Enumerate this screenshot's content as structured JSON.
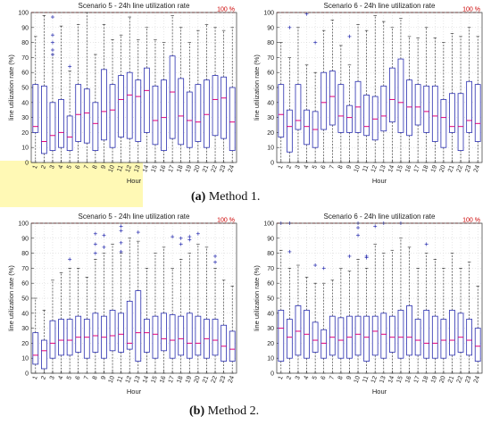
{
  "captions": {
    "a": {
      "label": "(a)",
      "text": " Method 1."
    },
    "b": {
      "label": "(b)",
      "text": " Method 2."
    }
  },
  "colors": {
    "box": "#2a2fb0",
    "median": "#e0007a",
    "whisker": "#222222",
    "outlier": "#2a2fb0",
    "reference": "#cc0000",
    "grid": "#cfcfcf",
    "highlight": "#fff8a8"
  },
  "chart_data": [
    {
      "type": "boxplot",
      "title": "Scenario 5 - 24h line utilization rate",
      "xlabel": "Hour",
      "ylabel": "line utilization rate  (%)",
      "ref_label": "100 %",
      "ylim": [
        0,
        100
      ],
      "yticks": [
        "0",
        "10",
        "20",
        "30",
        "40",
        "50",
        "60",
        "70",
        "80",
        "90",
        "100"
      ],
      "categories": [
        "1",
        "2",
        "3",
        "4",
        "5",
        "6",
        "7",
        "8",
        "9",
        "10",
        "11",
        "12",
        "13",
        "14",
        "15",
        "16",
        "17",
        "18",
        "19",
        "20",
        "21",
        "22",
        "23",
        "24"
      ],
      "grid": true,
      "boxes": [
        {
          "q1": 20,
          "med": 24,
          "q3": 52,
          "max": 84
        },
        {
          "q1": 6,
          "med": 14,
          "q3": 51,
          "max": 98
        },
        {
          "q1": 8,
          "med": 18,
          "q3": 40,
          "max": 72,
          "outliers": [
            97,
            85,
            80,
            75,
            72
          ]
        },
        {
          "q1": 10,
          "med": 20,
          "q3": 42,
          "max": 91
        },
        {
          "q1": 8,
          "med": 17,
          "q3": 31,
          "max": 61,
          "outliers": [
            64
          ]
        },
        {
          "q1": 14,
          "med": 32,
          "q3": 52,
          "max": 92
        },
        {
          "q1": 13,
          "med": 33,
          "q3": 49,
          "max": 100
        },
        {
          "q1": 8,
          "med": 26,
          "q3": 40,
          "max": 72
        },
        {
          "q1": 15,
          "med": 34,
          "q3": 62,
          "max": 92
        },
        {
          "q1": 10,
          "med": 35,
          "q3": 52,
          "max": 82
        },
        {
          "q1": 17,
          "med": 42,
          "q3": 58,
          "max": 85
        },
        {
          "q1": 16,
          "med": 45,
          "q3": 60,
          "max": 97
        },
        {
          "q1": 14,
          "med": 44,
          "q3": 55,
          "max": 82
        },
        {
          "q1": 20,
          "med": 48,
          "q3": 63,
          "max": 90
        },
        {
          "q1": 12,
          "med": 28,
          "q3": 51,
          "max": 82
        },
        {
          "q1": 8,
          "med": 30,
          "q3": 55,
          "max": 80
        },
        {
          "q1": 16,
          "med": 47,
          "q3": 71,
          "max": 98
        },
        {
          "q1": 12,
          "med": 31,
          "q3": 56,
          "max": 90
        },
        {
          "q1": 10,
          "med": 28,
          "q3": 47,
          "max": 80
        },
        {
          "q1": 14,
          "med": 27,
          "q3": 52,
          "max": 88
        },
        {
          "q1": 10,
          "med": 32,
          "q3": 55,
          "max": 92
        },
        {
          "q1": 18,
          "med": 42,
          "q3": 58,
          "max": 90
        },
        {
          "q1": 16,
          "med": 43,
          "q3": 57,
          "max": 88
        },
        {
          "q1": 8,
          "med": 27,
          "q3": 50,
          "max": 90
        }
      ]
    },
    {
      "type": "boxplot",
      "title": "Scenario 6 - 24h line utilization rate",
      "xlabel": "Hour",
      "ylabel": "line utilization rate  (%)",
      "ref_label": "100 %",
      "ylim": [
        0,
        100
      ],
      "yticks": [
        "0",
        "10",
        "20",
        "30",
        "40",
        "50",
        "60",
        "70",
        "80",
        "90",
        "100"
      ],
      "categories": [
        "1",
        "2",
        "3",
        "4",
        "5",
        "6",
        "7",
        "8",
        "9",
        "10",
        "11",
        "12",
        "13",
        "14",
        "15",
        "16",
        "17",
        "18",
        "19",
        "20",
        "21",
        "22",
        "23",
        "24"
      ],
      "grid": true,
      "boxes": [
        {
          "q1": 17,
          "med": 32,
          "q3": 52,
          "max": 80
        },
        {
          "q1": 7,
          "med": 24,
          "q3": 35,
          "max": 70,
          "outliers": [
            90
          ]
        },
        {
          "q1": 22,
          "med": 28,
          "q3": 52,
          "max": 90
        },
        {
          "q1": 12,
          "med": 24,
          "q3": 35,
          "max": 65,
          "outliers": [
            99
          ]
        },
        {
          "q1": 10,
          "med": 22,
          "q3": 34,
          "max": 60,
          "outliers": [
            80
          ]
        },
        {
          "q1": 22,
          "med": 40,
          "q3": 60,
          "max": 88
        },
        {
          "q1": 25,
          "med": 44,
          "q3": 61,
          "max": 95
        },
        {
          "q1": 20,
          "med": 31,
          "q3": 52,
          "max": 78
        },
        {
          "q1": 20,
          "med": 30,
          "q3": 38,
          "max": 65,
          "outliers": [
            84
          ]
        },
        {
          "q1": 20,
          "med": 37,
          "q3": 54,
          "max": 92
        },
        {
          "q1": 18,
          "med": 24,
          "q3": 45,
          "max": 88
        },
        {
          "q1": 15,
          "med": 29,
          "q3": 44,
          "max": 98
        },
        {
          "q1": 21,
          "med": 31,
          "q3": 51,
          "max": 94
        },
        {
          "q1": 27,
          "med": 42,
          "q3": 63,
          "max": 90
        },
        {
          "q1": 20,
          "med": 40,
          "q3": 69,
          "max": 96
        },
        {
          "q1": 18,
          "med": 37,
          "q3": 55,
          "max": 84
        },
        {
          "q1": 25,
          "med": 37,
          "q3": 52,
          "max": 83
        },
        {
          "q1": 20,
          "med": 34,
          "q3": 51,
          "max": 90
        },
        {
          "q1": 14,
          "med": 31,
          "q3": 51,
          "max": 83
        },
        {
          "q1": 10,
          "med": 30,
          "q3": 42,
          "max": 80
        },
        {
          "q1": 20,
          "med": 24,
          "q3": 46,
          "max": 86
        },
        {
          "q1": 8,
          "med": 24,
          "q3": 46,
          "max": 84
        },
        {
          "q1": 20,
          "med": 28,
          "q3": 54,
          "max": 90
        },
        {
          "q1": 14,
          "med": 26,
          "q3": 52,
          "max": 84
        }
      ]
    },
    {
      "type": "boxplot",
      "title": "Scenario 5 - 24h line utilization rate",
      "xlabel": "Hour",
      "ylabel": "line utilization rate  (%)",
      "ref_label": "100 %",
      "ylim": [
        0,
        100
      ],
      "yticks": [
        "0",
        "10",
        "20",
        "30",
        "40",
        "50",
        "60",
        "70",
        "80",
        "90",
        "100"
      ],
      "categories": [
        "1",
        "2",
        "3",
        "4",
        "5",
        "6",
        "7",
        "8",
        "9",
        "10",
        "11",
        "12",
        "13",
        "14",
        "15",
        "16",
        "17",
        "18",
        "19",
        "20",
        "21",
        "22",
        "23",
        "24"
      ],
      "grid": true,
      "boxes": [
        {
          "q1": 6,
          "med": 12,
          "q3": 27,
          "max": 50
        },
        {
          "q1": 3,
          "med": 15,
          "q3": 22,
          "max": 42
        },
        {
          "q1": 10,
          "med": 20,
          "q3": 35,
          "max": 62
        },
        {
          "q1": 12,
          "med": 22,
          "q3": 36,
          "max": 67
        },
        {
          "q1": 12,
          "med": 22,
          "q3": 36,
          "max": 70,
          "outliers": [
            76
          ]
        },
        {
          "q1": 14,
          "med": 24,
          "q3": 38,
          "max": 70
        },
        {
          "q1": 10,
          "med": 24,
          "q3": 36,
          "max": 64
        },
        {
          "q1": 14,
          "med": 25,
          "q3": 40,
          "max": 76,
          "outliers": [
            93,
            86,
            80
          ]
        },
        {
          "q1": 10,
          "med": 24,
          "q3": 38,
          "max": 80,
          "outliers": [
            92,
            84
          ]
        },
        {
          "q1": 15,
          "med": 25,
          "q3": 42,
          "max": 86
        },
        {
          "q1": 14,
          "med": 26,
          "q3": 40,
          "max": 80,
          "outliers": [
            98,
            95,
            87,
            81
          ]
        },
        {
          "q1": 16,
          "med": 20,
          "q3": 48,
          "max": 90
        },
        {
          "q1": 8,
          "med": 27,
          "q3": 55,
          "max": 88,
          "outliers": [
            94
          ]
        },
        {
          "q1": 14,
          "med": 27,
          "q3": 36,
          "max": 70
        },
        {
          "q1": 10,
          "med": 26,
          "q3": 38,
          "max": 80
        },
        {
          "q1": 15,
          "med": 23,
          "q3": 40,
          "max": 84
        },
        {
          "q1": 10,
          "med": 22,
          "q3": 39,
          "max": 70,
          "outliers": [
            91
          ]
        },
        {
          "q1": 12,
          "med": 23,
          "q3": 38,
          "max": 76,
          "outliers": [
            90,
            86
          ]
        },
        {
          "q1": 10,
          "med": 20,
          "q3": 40,
          "max": 80,
          "outliers": [
            91,
            89
          ]
        },
        {
          "q1": 12,
          "med": 20,
          "q3": 38,
          "max": 86,
          "outliers": [
            93
          ]
        },
        {
          "q1": 10,
          "med": 23,
          "q3": 36,
          "max": 84
        },
        {
          "q1": 12,
          "med": 22,
          "q3": 36,
          "max": 70,
          "outliers": [
            78,
            74
          ]
        },
        {
          "q1": 8,
          "med": 18,
          "q3": 32,
          "max": 62
        },
        {
          "q1": 8,
          "med": 16,
          "q3": 28,
          "max": 58
        }
      ]
    },
    {
      "type": "boxplot",
      "title": "Scenario 6 - 24h line utilization rate",
      "xlabel": "Hour",
      "ylabel": "line utilization rate  (%)",
      "ref_label": "100 %",
      "ylim": [
        0,
        100
      ],
      "yticks": [
        "0",
        "10",
        "20",
        "30",
        "40",
        "50",
        "60",
        "70",
        "80",
        "90",
        "100"
      ],
      "categories": [
        "1",
        "2",
        "3",
        "4",
        "5",
        "6",
        "7",
        "8",
        "9",
        "10",
        "11",
        "12",
        "13",
        "14",
        "15",
        "16",
        "17",
        "18",
        "19",
        "20",
        "21",
        "22",
        "23",
        "24"
      ],
      "grid": true,
      "boxes": [
        {
          "q1": 8,
          "med": 30,
          "q3": 42,
          "max": 82,
          "outliers": [
            100
          ]
        },
        {
          "q1": 10,
          "med": 24,
          "q3": 36,
          "max": 70,
          "outliers": [
            100,
            81
          ]
        },
        {
          "q1": 12,
          "med": 28,
          "q3": 45,
          "max": 72
        },
        {
          "q1": 10,
          "med": 26,
          "q3": 42,
          "max": 64
        },
        {
          "q1": 14,
          "med": 22,
          "q3": 34,
          "max": 60,
          "outliers": [
            72
          ]
        },
        {
          "q1": 10,
          "med": 20,
          "q3": 29,
          "max": 60,
          "outliers": [
            70
          ]
        },
        {
          "q1": 12,
          "med": 24,
          "q3": 38,
          "max": 62
        },
        {
          "q1": 10,
          "med": 22,
          "q3": 37,
          "max": 70
        },
        {
          "q1": 10,
          "med": 24,
          "q3": 38,
          "max": 68,
          "outliers": [
            78
          ]
        },
        {
          "q1": 12,
          "med": 26,
          "q3": 38,
          "max": 76,
          "outliers": [
            100,
            97,
            92
          ]
        },
        {
          "q1": 8,
          "med": 24,
          "q3": 38,
          "max": 70,
          "outliers": [
            78,
            77
          ]
        },
        {
          "q1": 12,
          "med": 28,
          "q3": 38,
          "max": 86,
          "outliers": [
            98
          ]
        },
        {
          "q1": 10,
          "med": 26,
          "q3": 40,
          "max": 80,
          "outliers": [
            100
          ]
        },
        {
          "q1": 14,
          "med": 24,
          "q3": 38,
          "max": 82
        },
        {
          "q1": 10,
          "med": 24,
          "q3": 42,
          "max": 90,
          "outliers": [
            100
          ]
        },
        {
          "q1": 12,
          "med": 24,
          "q3": 45,
          "max": 84
        },
        {
          "q1": 12,
          "med": 22,
          "q3": 36,
          "max": 70
        },
        {
          "q1": 10,
          "med": 20,
          "q3": 42,
          "max": 80,
          "outliers": [
            86
          ]
        },
        {
          "q1": 10,
          "med": 20,
          "q3": 38,
          "max": 76
        },
        {
          "q1": 10,
          "med": 22,
          "q3": 36,
          "max": 70
        },
        {
          "q1": 12,
          "med": 22,
          "q3": 42,
          "max": 80
        },
        {
          "q1": 14,
          "med": 24,
          "q3": 40,
          "max": 70
        },
        {
          "q1": 12,
          "med": 22,
          "q3": 36,
          "max": 74
        },
        {
          "q1": 8,
          "med": 18,
          "q3": 30,
          "max": 58
        }
      ]
    }
  ]
}
